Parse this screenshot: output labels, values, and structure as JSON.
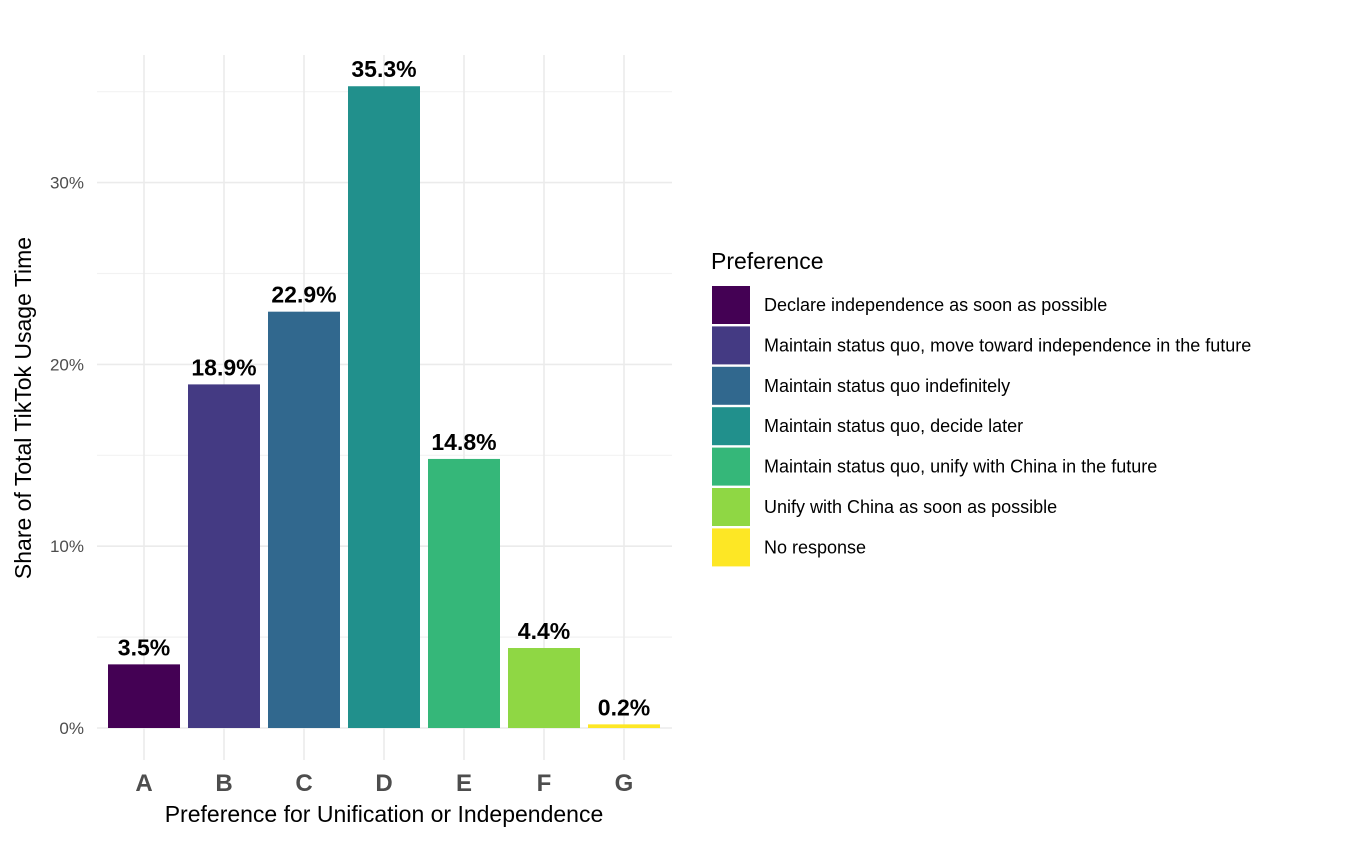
{
  "chart_data": {
    "type": "bar",
    "categories": [
      "A",
      "B",
      "C",
      "D",
      "E",
      "F",
      "G"
    ],
    "values": [
      3.5,
      18.9,
      22.9,
      35.3,
      14.8,
      4.4,
      0.2
    ],
    "value_labels": [
      "3.5%",
      "18.9%",
      "22.9%",
      "35.3%",
      "14.8%",
      "4.4%",
      "0.2%"
    ],
    "colors": [
      "#440154",
      "#443A83",
      "#31688E",
      "#21908C",
      "#35B779",
      "#8FD744",
      "#FDE725"
    ],
    "title": "",
    "xlabel": "Preference for Unification or Independence",
    "ylabel": "Share of Total TikTok Usage Time",
    "ylim": [
      0,
      35.3
    ],
    "y_ticks": [
      0,
      10,
      20,
      30
    ],
    "y_tick_labels": [
      "0%",
      "10%",
      "20%",
      "30%"
    ],
    "grid": true,
    "legend": {
      "title": "Preference",
      "position": "right",
      "entries": [
        "Declare independence as soon as possible",
        "Maintain status quo, move toward independence in the future",
        "Maintain status quo indefinitely",
        "Maintain status quo, decide later",
        "Maintain status quo, unify with China in the future",
        "Unify with China as soon as possible",
        "No response"
      ]
    }
  }
}
